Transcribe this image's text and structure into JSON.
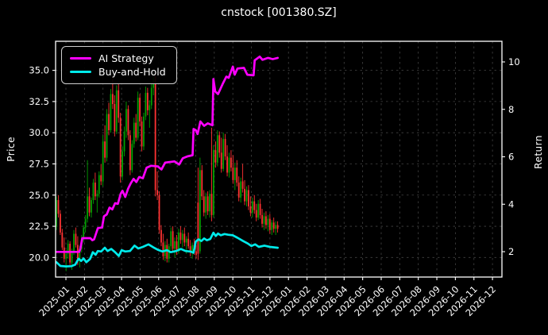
{
  "title": "cnstock [001380.SZ]",
  "legend": {
    "items": [
      {
        "label": "AI Strategy",
        "color": "#ff00ff"
      },
      {
        "label": "Buy-and-Hold",
        "color": "#00eaea"
      }
    ]
  },
  "axes": {
    "left": {
      "label": "Price",
      "tick_labels": [
        "20.0",
        "22.5",
        "25.0",
        "27.5",
        "30.0",
        "32.5",
        "35.0"
      ],
      "tick_values": [
        20.0,
        22.5,
        25.0,
        27.5,
        30.0,
        32.5,
        35.0
      ],
      "range": [
        18.43,
        37.33
      ]
    },
    "right": {
      "label": "Return",
      "tick_labels": [
        "2",
        "4",
        "6",
        "8",
        "10"
      ],
      "tick_values": [
        2,
        4,
        6,
        8,
        10
      ],
      "range": [
        0.93,
        10.87
      ]
    },
    "bottom": {
      "tick_labels": [
        "2025-01",
        "2025-02",
        "2025-03",
        "2025-04",
        "2025-05",
        "2025-06",
        "2025-07",
        "2025-08",
        "2025-09",
        "2025-10",
        "2025-11",
        "2025-12",
        "2026-01",
        "2026-02",
        "2026-03",
        "2026-04",
        "2026-05",
        "2026-06",
        "2026-07",
        "2026-08",
        "2026-09",
        "2026-10",
        "2026-11",
        "2026-12"
      ],
      "range_months": [
        -0.557,
        23.51
      ]
    }
  },
  "colors": {
    "background": "#000000",
    "text": "#ffffff",
    "grid": "#4f4f4f",
    "spine": "#ffffff",
    "candle_up": "#00a000",
    "candle_down": "#ff3232",
    "ai_line": "#ff00ff",
    "bh_line": "#00eaea"
  },
  "chart_data": {
    "type": "candlestick",
    "title": "cnstock [001380.SZ]",
    "grid": true,
    "legend_position": "upper-left",
    "x_unit": "month offset from 2025-01",
    "candles": {
      "x_start_month": -0.514,
      "x_step_month": 0.10465,
      "ohlc": [
        [
          22.5,
          24.9,
          22.2,
          24.6
        ],
        [
          24.6,
          25.0,
          23.2,
          23.5
        ],
        [
          23.5,
          23.8,
          21.8,
          22.0
        ],
        [
          22.0,
          22.3,
          20.6,
          20.8
        ],
        [
          20.8,
          21.6,
          19.6,
          19.9
        ],
        [
          19.9,
          20.6,
          18.9,
          20.3
        ],
        [
          20.3,
          21.4,
          19.9,
          21.1
        ],
        [
          21.1,
          21.3,
          19.3,
          19.6
        ],
        [
          19.6,
          20.7,
          19.0,
          20.5
        ],
        [
          20.5,
          22.2,
          20.2,
          21.9
        ],
        [
          21.9,
          22.4,
          20.8,
          21.0
        ],
        [
          21.0,
          21.7,
          19.4,
          19.7
        ],
        [
          19.7,
          20.9,
          19.2,
          20.7
        ],
        [
          20.7,
          21.8,
          20.4,
          21.5
        ],
        [
          21.5,
          22.6,
          21.2,
          22.4
        ],
        [
          22.4,
          23.4,
          22.0,
          23.1
        ],
        [
          23.1,
          27.8,
          22.8,
          24.9
        ],
        [
          24.9,
          25.6,
          23.3,
          23.6
        ],
        [
          23.6,
          24.8,
          23.2,
          24.6
        ],
        [
          24.6,
          26.3,
          24.3,
          26.0
        ],
        [
          26.0,
          26.8,
          24.6,
          24.9
        ],
        [
          24.9,
          25.4,
          23.6,
          25.1
        ],
        [
          25.1,
          26.9,
          24.8,
          26.6
        ],
        [
          26.6,
          27.5,
          25.8,
          26.1
        ],
        [
          26.1,
          29.8,
          25.7,
          29.3
        ],
        [
          29.3,
          30.6,
          27.6,
          28.0
        ],
        [
          28.0,
          31.9,
          27.7,
          31.5
        ],
        [
          31.5,
          32.4,
          29.8,
          30.2
        ],
        [
          30.2,
          33.5,
          30.0,
          33.1
        ],
        [
          33.1,
          34.5,
          31.9,
          32.3
        ],
        [
          32.3,
          33.0,
          29.7,
          30.1
        ],
        [
          30.1,
          33.8,
          29.9,
          33.4
        ],
        [
          33.4,
          33.9,
          30.8,
          31.2
        ],
        [
          31.2,
          31.6,
          26.0,
          26.5
        ],
        [
          26.5,
          28.9,
          26.2,
          28.5
        ],
        [
          28.5,
          30.5,
          28.1,
          30.1
        ],
        [
          30.1,
          32.5,
          29.6,
          31.9
        ],
        [
          31.9,
          32.2,
          29.4,
          29.8
        ],
        [
          29.8,
          30.2,
          26.6,
          27.0
        ],
        [
          27.0,
          29.4,
          26.8,
          29.1
        ],
        [
          29.1,
          31.2,
          28.8,
          30.8
        ],
        [
          30.8,
          31.5,
          29.3,
          29.6
        ],
        [
          29.6,
          33.3,
          29.4,
          32.8
        ],
        [
          32.8,
          33.1,
          30.5,
          30.9
        ],
        [
          30.9,
          31.3,
          28.5,
          28.9
        ],
        [
          28.9,
          31.6,
          28.6,
          31.3
        ],
        [
          31.3,
          33.7,
          31.0,
          33.2
        ],
        [
          33.2,
          33.6,
          31.4,
          31.8
        ],
        [
          31.8,
          32.6,
          30.4,
          32.2
        ],
        [
          32.2,
          34.0,
          31.9,
          33.6
        ],
        [
          33.6,
          34.9,
          33.0,
          34.5
        ],
        [
          34.5,
          34.8,
          24.9,
          25.4
        ],
        [
          25.4,
          26.9,
          24.6,
          25.0
        ],
        [
          25.0,
          25.3,
          21.9,
          22.2
        ],
        [
          22.2,
          22.6,
          20.9,
          21.2
        ],
        [
          21.2,
          21.9,
          19.8,
          20.1
        ],
        [
          20.1,
          21.3,
          19.7,
          21.0
        ],
        [
          21.0,
          21.5,
          19.6,
          19.9
        ],
        [
          19.9,
          21.1,
          19.6,
          20.9
        ],
        [
          20.9,
          22.4,
          20.6,
          22.1
        ],
        [
          22.1,
          22.5,
          20.4,
          20.7
        ],
        [
          20.7,
          21.6,
          20.0,
          21.3
        ],
        [
          21.3,
          21.8,
          20.2,
          20.5
        ],
        [
          20.5,
          22.3,
          20.3,
          22.0
        ],
        [
          22.0,
          22.5,
          21.1,
          21.4
        ],
        [
          21.4,
          22.2,
          20.8,
          21.9
        ],
        [
          21.9,
          22.4,
          20.9,
          21.2
        ],
        [
          21.2,
          21.7,
          20.3,
          21.5
        ],
        [
          21.5,
          22.0,
          20.7,
          20.9
        ],
        [
          20.9,
          21.4,
          20.1,
          20.4
        ],
        [
          20.4,
          21.2,
          19.9,
          21.0
        ],
        [
          21.0,
          21.5,
          20.2,
          20.5
        ],
        [
          20.5,
          21.0,
          19.9,
          20.2
        ],
        [
          24.4,
          27.2,
          19.8,
          20.3
        ],
        [
          20.5,
          28.0,
          20.3,
          27.0
        ],
        [
          27.0,
          27.4,
          24.6,
          24.9
        ],
        [
          24.9,
          25.4,
          23.3,
          23.6
        ],
        [
          23.6,
          25.2,
          23.1,
          24.9
        ],
        [
          24.9,
          25.3,
          23.4,
          23.7
        ],
        [
          23.7,
          25.4,
          23.2,
          25.1
        ],
        [
          25.1,
          30.4,
          22.9,
          23.4
        ],
        [
          23.4,
          29.0,
          23.2,
          28.6
        ],
        [
          28.6,
          29.3,
          27.2,
          27.6
        ],
        [
          27.6,
          30.2,
          27.3,
          29.8
        ],
        [
          29.8,
          30.1,
          28.0,
          28.4
        ],
        [
          28.4,
          29.6,
          26.8,
          27.1
        ],
        [
          27.1,
          30.0,
          26.9,
          29.5
        ],
        [
          29.5,
          29.9,
          27.8,
          28.1
        ],
        [
          28.1,
          29.0,
          26.5,
          26.8
        ],
        [
          26.8,
          28.4,
          26.4,
          28.0
        ],
        [
          28.0,
          28.6,
          26.9,
          27.2
        ],
        [
          27.2,
          28.2,
          25.9,
          26.2
        ],
        [
          26.2,
          27.6,
          25.4,
          27.2
        ],
        [
          27.2,
          27.8,
          25.7,
          26.0
        ],
        [
          26.0,
          26.5,
          24.5,
          24.8
        ],
        [
          24.8,
          26.4,
          24.4,
          26.1
        ],
        [
          26.1,
          27.5,
          25.2,
          25.5
        ],
        [
          25.5,
          26.2,
          24.2,
          24.5
        ],
        [
          24.5,
          25.7,
          24.1,
          25.4
        ],
        [
          25.4,
          25.8,
          23.8,
          24.1
        ],
        [
          24.1,
          24.9,
          23.3,
          23.6
        ],
        [
          23.6,
          24.8,
          23.2,
          24.5
        ],
        [
          24.5,
          25.0,
          23.5,
          23.8
        ],
        [
          23.8,
          24.3,
          22.9,
          23.2
        ],
        [
          23.2,
          24.6,
          23.0,
          24.3
        ],
        [
          24.3,
          24.7,
          23.1,
          23.4
        ],
        [
          23.4,
          23.9,
          22.4,
          22.7
        ],
        [
          22.7,
          23.6,
          22.2,
          23.3
        ],
        [
          23.3,
          23.7,
          22.3,
          22.6
        ],
        [
          22.6,
          23.4,
          22.1,
          23.1
        ],
        [
          23.1,
          23.5,
          21.9,
          22.2
        ],
        [
          22.2,
          23.0,
          21.8,
          22.8
        ],
        [
          22.8,
          23.2,
          22.0,
          22.3
        ],
        [
          22.3,
          22.9,
          21.8,
          22.6
        ],
        [
          22.6,
          22.9,
          22.0,
          22.3
        ]
      ]
    },
    "series": [
      {
        "name": "AI Strategy",
        "color": "#ff00ff",
        "axis": "left",
        "points": [
          [
            -0.51,
            20.45
          ],
          [
            0.72,
            20.45
          ],
          [
            0.78,
            20.7
          ],
          [
            0.88,
            21.55
          ],
          [
            1.32,
            21.55
          ],
          [
            1.42,
            21.38
          ],
          [
            1.52,
            21.45
          ],
          [
            1.72,
            22.35
          ],
          [
            1.95,
            22.4
          ],
          [
            2.05,
            23.3
          ],
          [
            2.2,
            23.45
          ],
          [
            2.35,
            24.0
          ],
          [
            2.5,
            23.85
          ],
          [
            2.65,
            24.35
          ],
          [
            2.8,
            24.3
          ],
          [
            2.95,
            25.1
          ],
          [
            3.05,
            25.35
          ],
          [
            3.2,
            24.85
          ],
          [
            3.35,
            25.5
          ],
          [
            3.5,
            25.95
          ],
          [
            3.65,
            26.3
          ],
          [
            3.8,
            26.05
          ],
          [
            3.95,
            26.45
          ],
          [
            4.15,
            26.35
          ],
          [
            4.35,
            27.2
          ],
          [
            4.6,
            27.35
          ],
          [
            4.95,
            27.3
          ],
          [
            5.15,
            27.05
          ],
          [
            5.35,
            27.6
          ],
          [
            5.85,
            27.7
          ],
          [
            6.1,
            27.45
          ],
          [
            6.3,
            27.95
          ],
          [
            6.55,
            28.1
          ],
          [
            6.83,
            28.2
          ],
          [
            6.88,
            30.3
          ],
          [
            7.0,
            30.2
          ],
          [
            7.1,
            29.9
          ],
          [
            7.25,
            30.9
          ],
          [
            7.45,
            30.55
          ],
          [
            7.65,
            30.75
          ],
          [
            7.9,
            30.6
          ],
          [
            7.95,
            34.3
          ],
          [
            8.05,
            33.3
          ],
          [
            8.2,
            33.1
          ],
          [
            8.45,
            33.9
          ],
          [
            8.65,
            34.5
          ],
          [
            8.78,
            34.4
          ],
          [
            9.0,
            35.3
          ],
          [
            9.1,
            34.65
          ],
          [
            9.25,
            35.15
          ],
          [
            9.6,
            35.2
          ],
          [
            9.78,
            34.65
          ],
          [
            10.12,
            34.6
          ],
          [
            10.18,
            35.8
          ],
          [
            10.45,
            36.1
          ],
          [
            10.6,
            35.85
          ],
          [
            10.9,
            36.0
          ],
          [
            11.15,
            35.9
          ],
          [
            11.42,
            36.0
          ]
        ]
      },
      {
        "name": "Buy-and-Hold",
        "color": "#00eaea",
        "axis": "left",
        "points": [
          [
            -0.51,
            19.62
          ],
          [
            -0.3,
            19.32
          ],
          [
            0.0,
            19.28
          ],
          [
            0.3,
            19.3
          ],
          [
            0.5,
            19.42
          ],
          [
            0.68,
            19.9
          ],
          [
            0.82,
            19.72
          ],
          [
            0.95,
            19.92
          ],
          [
            1.1,
            19.62
          ],
          [
            1.3,
            19.88
          ],
          [
            1.45,
            20.42
          ],
          [
            1.6,
            20.22
          ],
          [
            1.72,
            20.52
          ],
          [
            1.9,
            20.48
          ],
          [
            2.1,
            20.78
          ],
          [
            2.25,
            20.52
          ],
          [
            2.45,
            20.68
          ],
          [
            2.65,
            20.42
          ],
          [
            2.85,
            20.12
          ],
          [
            3.0,
            20.58
          ],
          [
            3.2,
            20.48
          ],
          [
            3.45,
            20.52
          ],
          [
            3.7,
            20.95
          ],
          [
            3.9,
            20.72
          ],
          [
            4.15,
            20.85
          ],
          [
            4.45,
            21.05
          ],
          [
            4.7,
            20.82
          ],
          [
            4.95,
            20.62
          ],
          [
            5.2,
            20.48
          ],
          [
            5.45,
            20.58
          ],
          [
            5.65,
            20.42
          ],
          [
            5.95,
            20.52
          ],
          [
            6.2,
            20.68
          ],
          [
            6.45,
            20.52
          ],
          [
            6.7,
            20.48
          ],
          [
            6.88,
            20.38
          ],
          [
            7.0,
            21.28
          ],
          [
            7.15,
            21.45
          ],
          [
            7.3,
            21.32
          ],
          [
            7.45,
            21.52
          ],
          [
            7.6,
            21.38
          ],
          [
            7.78,
            21.48
          ],
          [
            7.95,
            21.98
          ],
          [
            8.08,
            21.72
          ],
          [
            8.2,
            21.92
          ],
          [
            8.35,
            21.78
          ],
          [
            8.55,
            21.88
          ],
          [
            8.75,
            21.82
          ],
          [
            9.0,
            21.78
          ],
          [
            9.25,
            21.58
          ],
          [
            9.55,
            21.32
          ],
          [
            9.8,
            21.12
          ],
          [
            10.0,
            20.92
          ],
          [
            10.2,
            21.05
          ],
          [
            10.4,
            20.85
          ],
          [
            10.7,
            20.95
          ],
          [
            11.0,
            20.85
          ],
          [
            11.42,
            20.78
          ]
        ]
      }
    ]
  }
}
